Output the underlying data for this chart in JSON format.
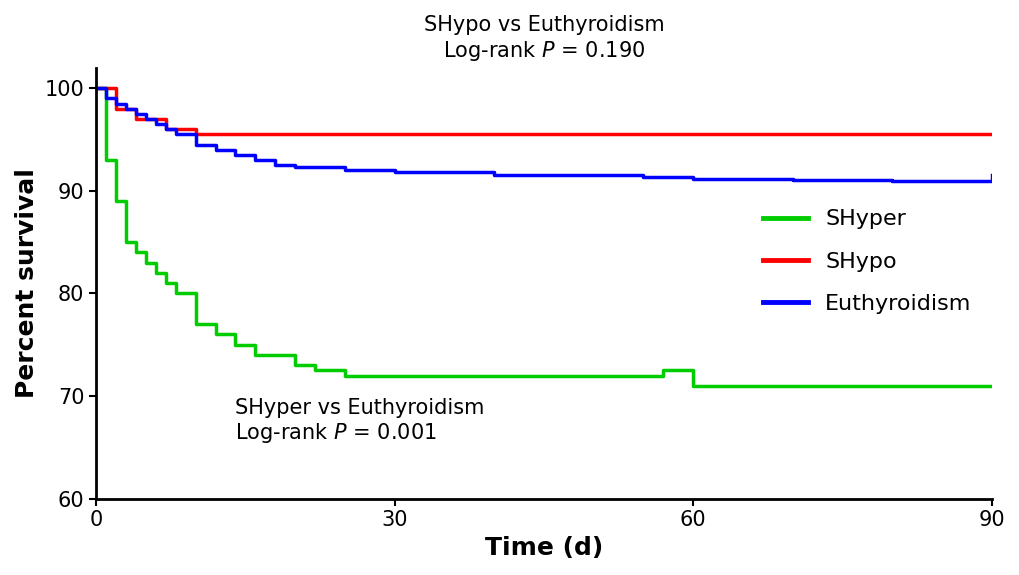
{
  "title_line1": "SHypo vs Euthyroidism",
  "title_line2": "Log-rank P = 0.190",
  "annotation_line1": "SHyper vs Euthyroidism",
  "annotation_line2": "Log-rank P = 0.001",
  "xlabel": "Time (d)",
  "ylabel": "Percent survival",
  "xlim": [
    0,
    90
  ],
  "ylim": [
    60,
    102
  ],
  "yticks": [
    60,
    70,
    80,
    90,
    100
  ],
  "xticks": [
    0,
    30,
    60,
    90
  ],
  "shyper_color": "#00cc00",
  "shypo_color": "#ff0000",
  "euth_color": "#0000ff",
  "shyper_x": [
    0,
    1,
    2,
    3,
    4,
    5,
    6,
    7,
    8,
    10,
    12,
    14,
    16,
    20,
    22,
    25,
    27,
    57,
    60,
    90
  ],
  "shyper_y": [
    100,
    93,
    89,
    85,
    84,
    83,
    82,
    81,
    80,
    77,
    76,
    75,
    74,
    73,
    72.5,
    72,
    72,
    72.5,
    71,
    71
  ],
  "shypo_x": [
    0,
    2,
    4,
    7,
    10,
    90
  ],
  "shypo_y": [
    100,
    98,
    97,
    96,
    95.5,
    95.5
  ],
  "euth_x": [
    0,
    1,
    2,
    3,
    4,
    5,
    6,
    7,
    8,
    10,
    12,
    14,
    16,
    18,
    20,
    25,
    30,
    40,
    55,
    60,
    70,
    80,
    90
  ],
  "euth_y": [
    100,
    99,
    98.5,
    98,
    97.5,
    97,
    96.5,
    96,
    95.5,
    94.5,
    94,
    93.5,
    93,
    92.5,
    92.3,
    92.0,
    91.8,
    91.5,
    91.3,
    91.2,
    91.1,
    91.0,
    91.5
  ],
  "legend_labels": [
    "SHyper",
    "SHypo",
    "Euthyroidism"
  ],
  "legend_colors": [
    "#00cc00",
    "#ff0000",
    "#0000ff"
  ],
  "title_fontsize": 15,
  "label_fontsize": 18,
  "tick_fontsize": 15,
  "legend_fontsize": 16,
  "annotation_fontsize": 15,
  "linewidth": 2.5
}
